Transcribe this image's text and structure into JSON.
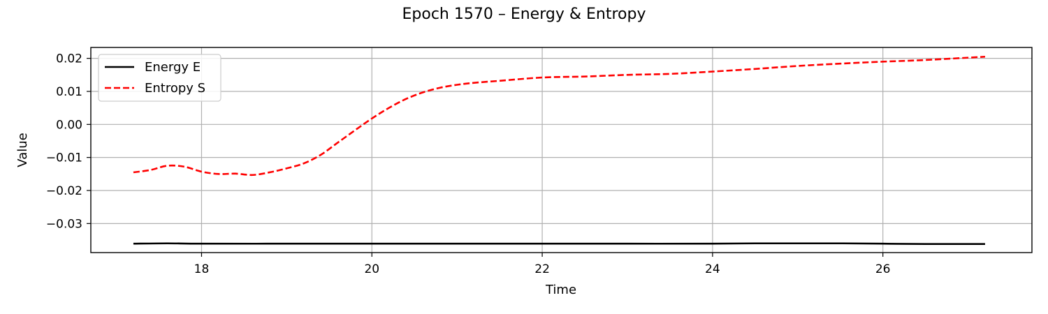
{
  "chart_data": {
    "type": "line",
    "title": "Epoch 1570 – Energy & Entropy",
    "xlabel": "Time",
    "ylabel": "Value",
    "xlim": [
      16.7,
      27.75
    ],
    "ylim": [
      -0.0388,
      0.0233
    ],
    "xticks": [
      18,
      20,
      22,
      24,
      26
    ],
    "xtick_labels": [
      "18",
      "20",
      "22",
      "24",
      "26"
    ],
    "yticks": [
      0.02,
      0.01,
      0.0,
      -0.01,
      -0.02,
      -0.03
    ],
    "ytick_labels": [
      "0.02",
      "0.01",
      "0.00",
      "−0.01",
      "−0.02",
      "−0.03"
    ],
    "grid": true,
    "legend_position": "top-left",
    "series": [
      {
        "name": "Energy E",
        "color": "#000000",
        "style": "solid",
        "x": [
          17.2,
          17.6,
          18.0,
          19.0,
          20.0,
          21.0,
          22.0,
          23.0,
          24.0,
          24.5,
          25.0,
          25.5,
          26.0,
          26.5,
          27.2
        ],
        "y": [
          -0.0361,
          -0.036,
          -0.0361,
          -0.0361,
          -0.0361,
          -0.0361,
          -0.0361,
          -0.0361,
          -0.0361,
          -0.036,
          -0.036,
          -0.036,
          -0.0361,
          -0.0362,
          -0.0362
        ]
      },
      {
        "name": "Entropy S",
        "color": "#ff0000",
        "style": "dashed",
        "x": [
          17.2,
          17.4,
          17.6,
          17.8,
          18.0,
          18.2,
          18.4,
          18.6,
          18.8,
          19.0,
          19.2,
          19.4,
          19.6,
          19.8,
          20.0,
          20.2,
          20.4,
          20.6,
          20.8,
          21.0,
          21.2,
          21.5,
          22.0,
          22.5,
          23.0,
          23.5,
          24.0,
          24.5,
          25.0,
          25.5,
          26.0,
          26.5,
          27.2
        ],
        "y": [
          -0.0145,
          -0.0138,
          -0.0125,
          -0.0128,
          -0.0143,
          -0.015,
          -0.0149,
          -0.0153,
          -0.0145,
          -0.0133,
          -0.0118,
          -0.0092,
          -0.0055,
          -0.0018,
          0.0018,
          0.005,
          0.0077,
          0.0097,
          0.0111,
          0.012,
          0.0126,
          0.0132,
          0.0142,
          0.0145,
          0.015,
          0.0153,
          0.016,
          0.0168,
          0.0177,
          0.0184,
          0.019,
          0.0195,
          0.0205
        ]
      }
    ]
  }
}
